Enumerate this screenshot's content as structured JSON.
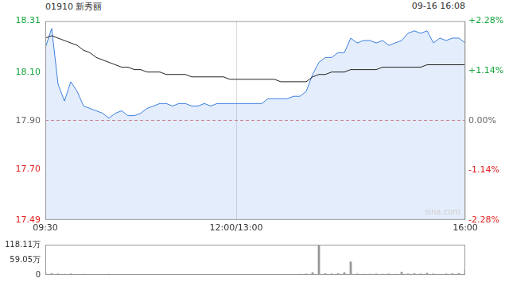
{
  "chart_data": [
    {
      "type": "line",
      "title": "01910 新秀丽",
      "subtitle": "09-16 16:08",
      "annotation": "sina.com",
      "categories": [
        "09:30",
        null,
        null,
        null,
        null,
        null,
        null,
        null,
        null,
        null,
        null,
        null,
        null,
        null,
        null,
        null,
        null,
        null,
        null,
        null,
        null,
        null,
        null,
        null,
        null,
        null,
        null,
        null,
        null,
        null,
        "12:00/13:00",
        null,
        null,
        null,
        null,
        null,
        null,
        null,
        null,
        null,
        null,
        null,
        null,
        null,
        null,
        null,
        null,
        null,
        null,
        null,
        null,
        null,
        null,
        null,
        null,
        null,
        null,
        null,
        null,
        null,
        null,
        null,
        null,
        null,
        null,
        null,
        "16:00"
      ],
      "series": [
        {
          "color": "#3d7fe0",
          "values": [
            18.2,
            18.28,
            18.05,
            17.98,
            18.06,
            18.02,
            17.96,
            17.95,
            17.94,
            17.93,
            17.91,
            17.93,
            17.94,
            17.92,
            17.92,
            17.93,
            17.95,
            17.96,
            17.97,
            17.97,
            17.96,
            17.97,
            17.97,
            17.96,
            17.96,
            17.97,
            17.96,
            17.97,
            17.97,
            17.97,
            17.97,
            17.97,
            17.97,
            17.97,
            17.97,
            17.99,
            17.99,
            17.99,
            17.99,
            18.0,
            18.0,
            18.02,
            18.09,
            18.14,
            18.16,
            18.16,
            18.18,
            18.18,
            18.24,
            18.22,
            18.23,
            18.23,
            18.22,
            18.23,
            18.21,
            18.22,
            18.23,
            18.26,
            18.27,
            18.26,
            18.27,
            18.22,
            18.24,
            18.23,
            18.24,
            18.24,
            18.22
          ]
        },
        {
          "color": "#222222",
          "values": [
            18.24,
            18.25,
            18.24,
            18.23,
            18.22,
            18.21,
            18.19,
            18.18,
            18.16,
            18.15,
            18.14,
            18.13,
            18.12,
            18.12,
            18.11,
            18.11,
            18.1,
            18.1,
            18.1,
            18.09,
            18.09,
            18.09,
            18.09,
            18.08,
            18.08,
            18.08,
            18.08,
            18.08,
            18.08,
            18.07,
            18.07,
            18.07,
            18.07,
            18.07,
            18.07,
            18.07,
            18.07,
            18.06,
            18.06,
            18.06,
            18.06,
            18.06,
            18.08,
            18.09,
            18.09,
            18.1,
            18.1,
            18.1,
            18.11,
            18.11,
            18.11,
            18.11,
            18.11,
            18.12,
            18.12,
            18.12,
            18.12,
            18.12,
            18.12,
            18.12,
            18.13,
            18.13,
            18.13,
            18.13,
            18.13,
            18.13,
            18.13
          ]
        }
      ],
      "ylim": [
        17.49,
        18.31
      ],
      "yticks": [
        17.49,
        {
          "value": 17.7,
          "label": "17.70"
        },
        {
          "value": 17.9,
          "label": "17.90"
        },
        {
          "value": 18.1,
          "label": "18.10"
        },
        18.31
      ],
      "y2lim": [
        -2.28,
        2.28
      ],
      "y2ticks": [
        {
          "value": -2.28,
          "label": "-2.28%"
        },
        {
          "value": -1.14,
          "label": "-1.14%"
        },
        {
          "value": 0,
          "label": "0.00%"
        },
        {
          "value": 1.14,
          "label": "+1.14%"
        },
        {
          "value": 2.28,
          "label": "+2.28%"
        }
      ],
      "grid": true
    },
    {
      "type": "bar",
      "categories": [
        "09:30",
        null,
        null,
        null,
        null,
        null,
        null,
        null,
        null,
        null,
        null,
        null,
        null,
        null,
        null,
        null,
        null,
        null,
        null,
        null,
        null,
        null,
        null,
        null,
        null,
        null,
        null,
        null,
        null,
        null,
        "12:00/13:00",
        null,
        null,
        null,
        null,
        null,
        null,
        null,
        null,
        null,
        null,
        null,
        null,
        null,
        null,
        null,
        null,
        null,
        null,
        null,
        null,
        null,
        null,
        null,
        null,
        null,
        null,
        null,
        null,
        null,
        null,
        null,
        null,
        null,
        null,
        null,
        "16:00"
      ],
      "values": [
        8,
        6,
        5,
        4,
        5,
        3,
        4,
        3,
        2,
        3,
        4,
        2,
        3,
        2,
        2,
        3,
        2,
        2,
        3,
        2,
        2,
        2,
        3,
        2,
        2,
        2,
        2,
        2,
        2,
        2,
        3,
        2,
        2,
        2,
        2,
        3,
        2,
        2,
        3,
        3,
        4,
        5,
        10,
        118,
        6,
        5,
        6,
        10,
        52,
        5,
        4,
        4,
        5,
        4,
        5,
        4,
        12,
        5,
        6,
        5,
        8,
        5,
        4,
        5,
        6,
        7,
        20
      ],
      "color": "#999999",
      "ylim": [
        0,
        118.11
      ],
      "yticks": [
        0,
        {
          "value": 59.05,
          "label": "59.05万"
        },
        {
          "value": 118.11,
          "label": "118.11万"
        }
      ],
      "grid": false,
      "tick_labels": "y"
    }
  ]
}
